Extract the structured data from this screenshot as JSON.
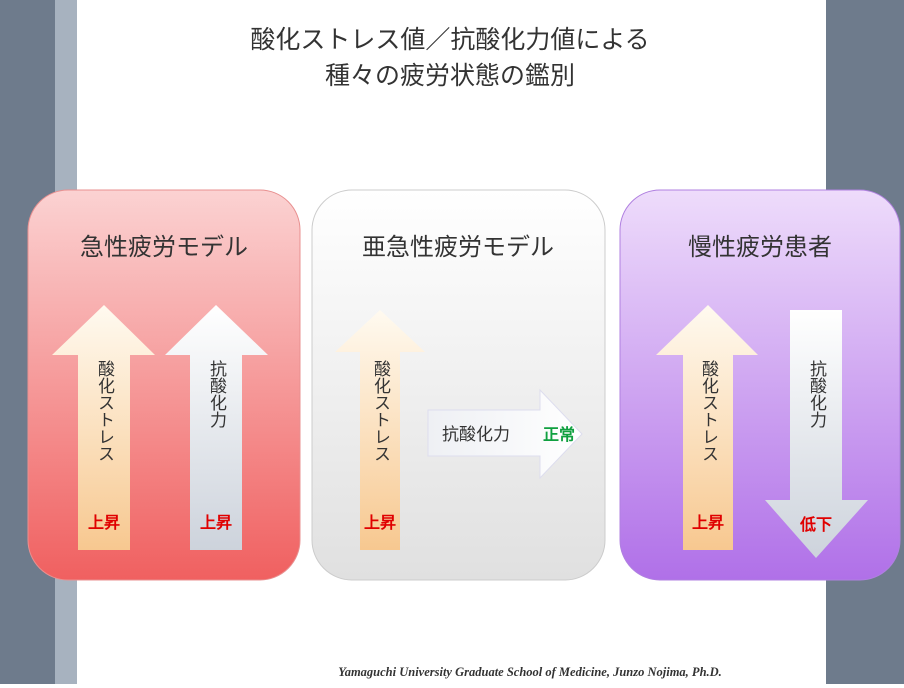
{
  "title": [
    "酸化ストレス値／抗酸化力値による",
    "種々の疲労状態の鑑別"
  ],
  "panels": [
    {
      "title": "急性疲労モデル",
      "arrows": [
        {
          "label": "酸化ストレス",
          "status": "上昇"
        },
        {
          "label": "抗酸化力",
          "status": "上昇"
        }
      ]
    },
    {
      "title": "亜急性疲労モデル",
      "arrows": [
        {
          "label": "酸化ストレス",
          "status": "上昇"
        },
        {
          "label": "抗酸化力",
          "status": "正常"
        }
      ]
    },
    {
      "title": "慢性疲労患者",
      "arrows": [
        {
          "label": "酸化ストレス",
          "status": "上昇"
        },
        {
          "label": "抗酸化力",
          "status": "低下"
        }
      ]
    }
  ],
  "footer": "Yamaguchi University Graduate School of Medicine,  Junzo Nojima, Ph.D."
}
